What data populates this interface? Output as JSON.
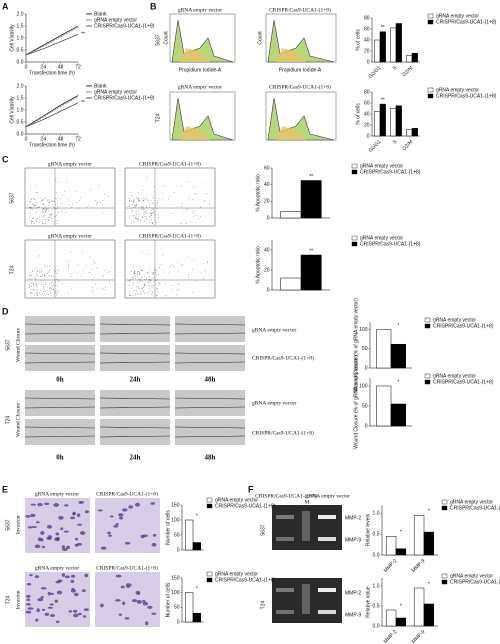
{
  "figure": {
    "panels": [
      "A",
      "B",
      "C",
      "D",
      "E",
      "F"
    ],
    "b": {
      "row_labels": [
        "5637",
        "T24"
      ],
      "image_titles": [
        "gRNA empty vector",
        "CRISPR/Cas9-UCA1-(1+8)"
      ],
      "x_axis": "Propidium Iodide-A",
      "y_axis": "Count"
    },
    "c": {
      "row_labels": [
        "5637",
        "T24"
      ],
      "image_titles": [
        "gRNA empty vector",
        "CRISPR/Cas9-UCA1-(1+8)"
      ]
    },
    "d": {
      "row_labels": [
        "5637",
        "T24"
      ],
      "side_label": "Wound Closure",
      "times": [
        "0h",
        "24h",
        "48h"
      ],
      "conditions": [
        "gRNA empty vector",
        "CRISPR/Cas9-UCA1-(1+8)"
      ]
    },
    "e": {
      "row_labels": [
        "5637",
        "T24"
      ],
      "side_label": "Invasion",
      "image_titles": [
        "gRNA empty vector",
        "CRISPR/Cas9-UCA1-(1+8)"
      ]
    },
    "f": {
      "row_labels": [
        "5637",
        "T24"
      ],
      "lanes": [
        "CRISPR/Cas9-UCA1-(1+8)",
        "M",
        "gRNA empty vector"
      ],
      "bands": [
        "MMP-2",
        "MMP-9"
      ]
    }
  },
  "chart_data": [
    {
      "type": "line",
      "ylabel": "Cell Viability",
      "xlabel": "Transfection time (h)",
      "x": [
        0,
        24,
        48,
        72
      ],
      "xlim": [
        0,
        72
      ],
      "xticks": [
        0,
        24,
        48,
        72
      ],
      "ylim": [
        0,
        2
      ],
      "yticks": [
        {
          "value": 0,
          "label": "0.0"
        },
        0.5,
        {
          "value": 1,
          "label": "1.0"
        },
        1.5,
        {
          "value": 2,
          "label": "2.0"
        }
      ],
      "annotation": "**",
      "series": [
        {
          "name": "Blank",
          "color": "#000000",
          "values": [
            0.3,
            0.7,
            1.1,
            1.5
          ]
        },
        {
          "name": "gRNA empty vector",
          "color": "#777777",
          "values": [
            0.3,
            0.65,
            1.05,
            1.45
          ]
        },
        {
          "name": "CRISPR/Cas9-UCA1-(1+8)",
          "color": "#333333",
          "values": [
            0.3,
            0.55,
            0.85,
            1.15
          ]
        }
      ]
    },
    {
      "type": "line",
      "ylabel": "Cell Viability",
      "xlabel": "Transfection time (h)",
      "x": [
        0,
        24,
        48,
        72
      ],
      "xlim": [
        0,
        72
      ],
      "xticks": [
        0,
        24,
        48,
        72
      ],
      "ylim": [
        0,
        2
      ],
      "yticks": [
        {
          "value": 0,
          "label": "0.0"
        },
        0.5,
        {
          "value": 1,
          "label": "1.0"
        },
        1.5,
        {
          "value": 2,
          "label": "2.0"
        }
      ],
      "annotation": "**",
      "series": [
        {
          "name": "Blank",
          "color": "#000000",
          "values": [
            0.3,
            0.75,
            1.2,
            1.6
          ]
        },
        {
          "name": "gRNA empty vector",
          "color": "#777777",
          "values": [
            0.3,
            0.7,
            1.15,
            1.55
          ]
        },
        {
          "name": "CRISPR/Cas9-UCA1-(1+8)",
          "color": "#333333",
          "values": [
            0.3,
            0.6,
            0.95,
            1.3
          ]
        }
      ]
    },
    {
      "type": "bar",
      "ylabel": "% of cells",
      "categories": [
        "G0/G1",
        "S",
        "G2/M"
      ],
      "ylim": [
        0,
        80
      ],
      "yticks": [
        0,
        20,
        40,
        60,
        80
      ],
      "annotations": [
        "**",
        null,
        null
      ],
      "series": [
        {
          "name": "gRNA empty vector",
          "color": "#ffffff",
          "values": [
            40,
            62,
            12
          ]
        },
        {
          "name": "CRISPR/Cas9-UCA1-(1+8)",
          "color": "#000000",
          "values": [
            55,
            70,
            16
          ]
        }
      ]
    },
    {
      "type": "bar",
      "ylabel": "% of cells",
      "categories": [
        "G0/G1",
        "S",
        "G2/M"
      ],
      "ylim": [
        0,
        80
      ],
      "yticks": [
        0,
        20,
        40,
        60,
        80
      ],
      "annotations": [
        "**",
        null,
        null
      ],
      "series": [
        {
          "name": "gRNA empty vector",
          "color": "#ffffff",
          "values": [
            45,
            50,
            12
          ]
        },
        {
          "name": "CRISPR/Cas9-UCA1-(1+8)",
          "color": "#000000",
          "values": [
            58,
            55,
            14
          ]
        }
      ]
    },
    {
      "type": "bar",
      "ylabel": "% Apoptotic ratio",
      "categories": [
        null
      ],
      "ylim": [
        0,
        60
      ],
      "yticks": [
        0,
        20,
        40,
        60
      ],
      "annotations": [
        "**"
      ],
      "series": [
        {
          "name": "gRNA empty vector",
          "color": "#ffffff",
          "values": [
            8
          ]
        },
        {
          "name": "CRISPR/Cas9-UCA1-(1+8)",
          "color": "#000000",
          "values": [
            45
          ]
        }
      ]
    },
    {
      "type": "bar",
      "ylabel": "% Apoptotic ratio",
      "categories": [
        null
      ],
      "ylim": [
        0,
        50
      ],
      "yticks": [
        0,
        20,
        40
      ],
      "annotations": [
        "**"
      ],
      "series": [
        {
          "name": "gRNA empty vector",
          "color": "#ffffff",
          "values": [
            12
          ]
        },
        {
          "name": "CRISPR/Cas9-UCA1-(1+8)",
          "color": "#000000",
          "values": [
            35
          ]
        }
      ]
    },
    {
      "type": "bar",
      "ylabel": "Wound Closure (% of gRNA empty vector)",
      "categories": [
        null
      ],
      "ylim": [
        0,
        120
      ],
      "yticks": [
        0,
        50,
        100
      ],
      "annotations": [
        "*"
      ],
      "series": [
        {
          "name": "gRNA empty vector",
          "color": "#ffffff",
          "values": [
            100
          ]
        },
        {
          "name": "CRISPR/Cas9-UCA1-(1+8)",
          "color": "#000000",
          "values": [
            62
          ]
        }
      ]
    },
    {
      "type": "bar",
      "ylabel": "Wound Closure (% of gRNA empty vector)",
      "categories": [
        null
      ],
      "ylim": [
        0,
        120
      ],
      "yticks": [
        0,
        50,
        100
      ],
      "annotations": [
        "*"
      ],
      "series": [
        {
          "name": "gRNA empty vector",
          "color": "#ffffff",
          "values": [
            100
          ]
        },
        {
          "name": "CRISPR/Cas9-UCA1-(1+8)",
          "color": "#000000",
          "values": [
            55
          ]
        }
      ]
    },
    {
      "type": "bar",
      "ylabel": "Number of cells",
      "categories": [
        null
      ],
      "ylim": [
        0,
        150
      ],
      "yticks": [
        0,
        50,
        100,
        150
      ],
      "annotations": [
        "*"
      ],
      "series": [
        {
          "name": "gRNA empty vector",
          "color": "#ffffff",
          "values": [
            100
          ]
        },
        {
          "name": "CRISPR/Cas9-UCA1-(1+8)",
          "color": "#000000",
          "values": [
            25
          ]
        }
      ]
    },
    {
      "type": "bar",
      "ylabel": "Number of cells",
      "categories": [
        null
      ],
      "ylim": [
        0,
        150
      ],
      "yticks": [
        0,
        50,
        100,
        150
      ],
      "annotations": [
        "*"
      ],
      "series": [
        {
          "name": "gRNA empty vector",
          "color": "#ffffff",
          "values": [
            100
          ]
        },
        {
          "name": "CRISPR/Cas9-UCA1-(1+8)",
          "color": "#000000",
          "values": [
            30
          ]
        }
      ]
    },
    {
      "type": "bar",
      "ylabel": "Relative levels",
      "categories": [
        "MMP-2",
        "MMP-9"
      ],
      "ylim": [
        0,
        1.2
      ],
      "yticks": [
        {
          "value": 0,
          "label": "0.0"
        },
        0.5,
        {
          "value": 1,
          "label": "1.0"
        }
      ],
      "annotations": [
        "*",
        "*"
      ],
      "series": [
        {
          "name": "gRNA empty vector",
          "color": "#ffffff",
          "values": [
            0.45,
            0.95
          ]
        },
        {
          "name": "CRISPR/Cas9-UCA1-(1+8)",
          "color": "#000000",
          "values": [
            0.15,
            0.55
          ]
        }
      ]
    },
    {
      "type": "bar",
      "ylabel": "Relative value",
      "categories": [
        "MMP-2",
        "MMP-9"
      ],
      "ylim": [
        0,
        1.2
      ],
      "yticks": [
        {
          "value": 0,
          "label": "0.0"
        },
        0.5,
        {
          "value": 1,
          "label": "1.0"
        }
      ],
      "annotations": [
        "*",
        "*"
      ],
      "series": [
        {
          "name": "gRNA empty vector",
          "color": "#ffffff",
          "values": [
            0.4,
            0.95
          ]
        },
        {
          "name": "CRISPR/Cas9-UCA1-(1+8)",
          "color": "#000000",
          "values": [
            0.2,
            0.55
          ]
        }
      ]
    }
  ]
}
